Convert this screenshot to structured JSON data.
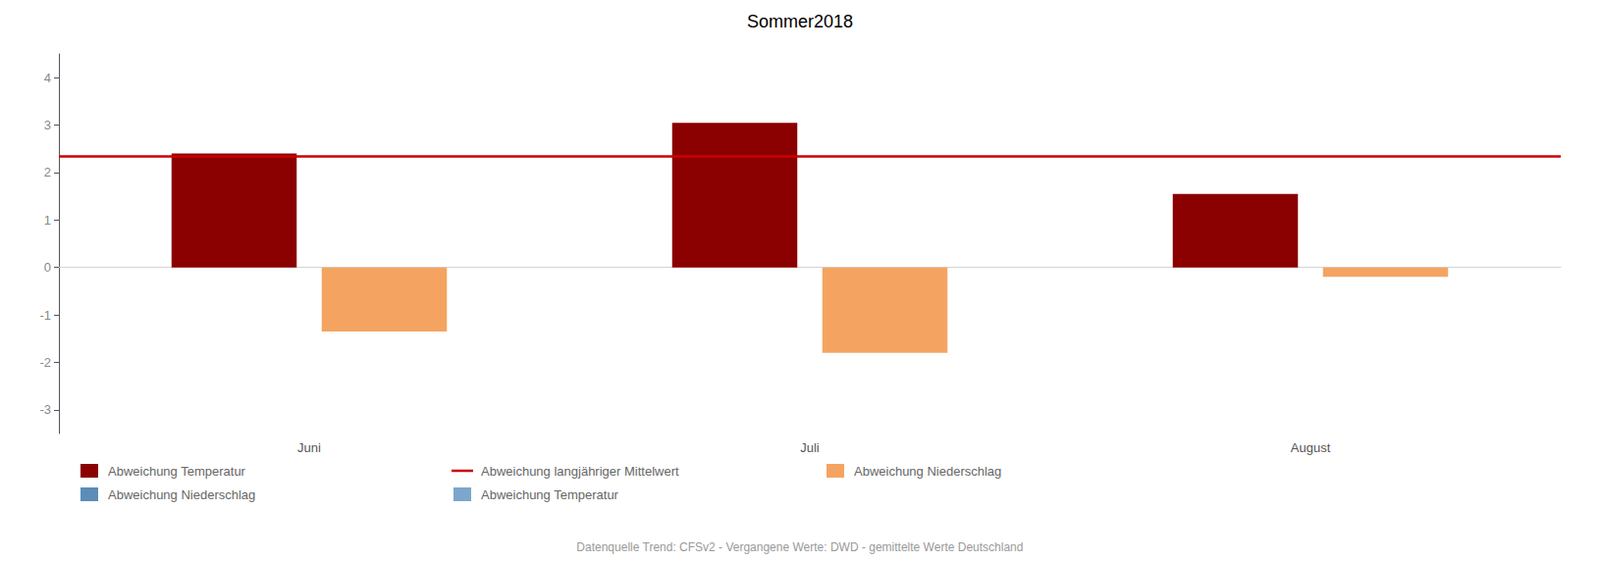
{
  "chart_data": {
    "type": "bar",
    "title": "Sommer2018",
    "categories": [
      "Juni",
      "Juli",
      "August"
    ],
    "series": [
      {
        "name": "Abweichung Temperatur",
        "color": "#8B0000",
        "values": [
          2.4,
          3.05,
          1.55
        ]
      },
      {
        "name": "Abweichung Niederschlag",
        "color": "#5B8DB8",
        "values": [
          null,
          null,
          null
        ]
      },
      {
        "name": "Abweichung langjähriger Mittelwert",
        "type": "hline",
        "color": "#CC0000",
        "y": 2.35
      },
      {
        "name": "Abweichung Temperatur",
        "color": "#7BA7CC",
        "values": [
          null,
          null,
          null
        ]
      },
      {
        "name": "Abweichung Niederschlag",
        "color": "#F4A460",
        "values": [
          -1.35,
          -1.8,
          -0.2
        ]
      }
    ],
    "ylim": [
      -3.5,
      4.5
    ],
    "yticks": [
      -3,
      -2,
      -1,
      0,
      1,
      2,
      3,
      4
    ],
    "grid": false,
    "legend": "bottom",
    "annotations": [
      "Datenquelle Trend: CFSv2 - Vergangene Werte: DWD - gemittelte Werte Deutschland"
    ]
  }
}
